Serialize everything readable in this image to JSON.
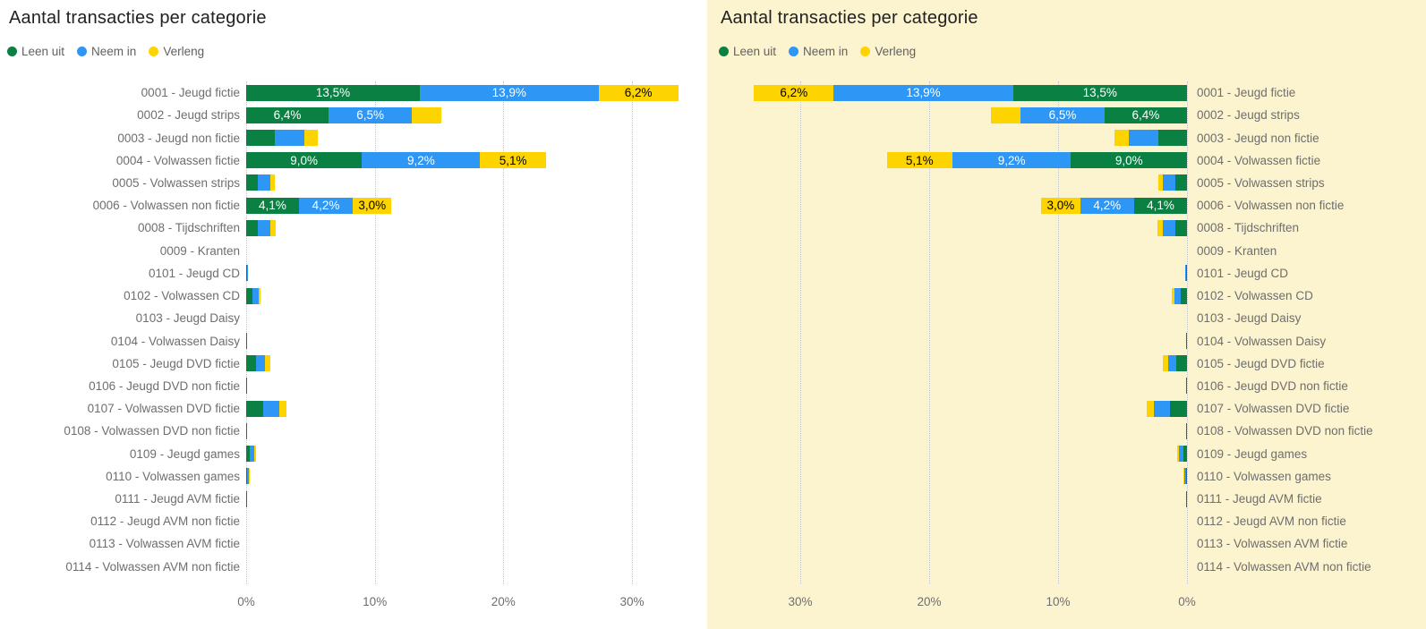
{
  "left_chart": {
    "title": "Aantal transacties per categorie"
  },
  "right_chart": {
    "title": "Aantal transacties per categorie"
  },
  "legend": [
    {
      "label": "Leen uit",
      "color": "#0b8043"
    },
    {
      "label": "Neem in",
      "color": "#2e96f5"
    },
    {
      "label": "Verleng",
      "color": "#fdd400"
    }
  ],
  "colors": {
    "right_panel_background": "#fcf3cf",
    "left_panel_background": "#ffffff",
    "green": "#0b8043",
    "blue": "#2e96f5",
    "yellow": "#fdd400",
    "gridline": "#c6c6c6",
    "label_text": "#6e6e6e",
    "title_text": "#212121"
  },
  "chart_data": {
    "type": "bar",
    "variant": "horizontal-stacked",
    "title": "Aantal transacties per categorie",
    "x_ticks": [
      "0%",
      "10%",
      "20%",
      "30%"
    ],
    "xlim": [
      0,
      35.6
    ],
    "grid": "dotted-vertical",
    "legend_position": "top-left",
    "panels": [
      {
        "side": "left",
        "direction": "bars-grow-right",
        "background": "#ffffff"
      },
      {
        "side": "right",
        "direction": "bars-grow-left (mirrored)",
        "background": "#fcf3cf"
      }
    ],
    "categories": [
      "0001 - Jeugd fictie",
      "0002 - Jeugd strips",
      "0003 - Jeugd non fictie",
      "0004 - Volwassen fictie",
      "0005 - Volwassen strips",
      "0006 - Volwassen non fictie",
      "0008 - Tijdschriften",
      "0009 - Kranten",
      "0101 - Jeugd CD",
      "0102 - Volwassen CD",
      "0103 - Jeugd Daisy",
      "0104 - Volwassen Daisy",
      "0105 - Jeugd DVD fictie",
      "0106 - Jeugd DVD non fictie",
      "0107 - Volwassen DVD fictie",
      "0108 - Volwassen DVD non fictie",
      "0109 - Jeugd games",
      "0110 - Volwassen games",
      "0111 - Jeugd AVM fictie",
      "0112 - Jeugd AVM non fictie",
      "0113 - Volwassen AVM fictie",
      "0114 - Volwassen AVM non fictie"
    ],
    "series": [
      {
        "name": "Leen uit",
        "color": "#0b8043",
        "label_text_color": "#ffffff",
        "values": [
          13.5,
          6.4,
          2.2,
          9.0,
          0.9,
          4.1,
          0.9,
          0,
          0.05,
          0.5,
          0,
          0.06,
          0.8,
          0.05,
          1.3,
          0.06,
          0.3,
          0.1,
          0.04,
          0,
          0,
          0
        ],
        "labels": [
          "13,5%",
          "6,4%",
          null,
          "9,0%",
          null,
          "4,1%",
          null,
          null,
          null,
          null,
          null,
          null,
          null,
          null,
          null,
          null,
          null,
          null,
          null,
          null,
          null,
          null
        ]
      },
      {
        "name": "Neem in",
        "color": "#2e96f5",
        "label_text_color": "#ffffff",
        "values": [
          13.9,
          6.5,
          2.3,
          9.2,
          1.0,
          4.2,
          1.0,
          0,
          0.03,
          0.5,
          0,
          0,
          0.65,
          0,
          1.25,
          0,
          0.35,
          0.08,
          0,
          0,
          0,
          0
        ],
        "labels": [
          "13,9%",
          "6,5%",
          null,
          "9,2%",
          null,
          "4,2%",
          null,
          null,
          null,
          null,
          null,
          null,
          null,
          null,
          null,
          null,
          null,
          null,
          null,
          null,
          null,
          null
        ]
      },
      {
        "name": "Verleng",
        "color": "#fdd400",
        "label_text_color": "#000000",
        "values": [
          6.2,
          2.3,
          1.1,
          5.1,
          0.3,
          3.0,
          0.4,
          0,
          0,
          0.15,
          0,
          0,
          0.45,
          0,
          0.6,
          0,
          0.12,
          0.04,
          0,
          0,
          0,
          0
        ],
        "labels": [
          "6,2%",
          null,
          null,
          "5,1%",
          null,
          "3,0%",
          null,
          null,
          null,
          null,
          null,
          null,
          null,
          null,
          null,
          null,
          null,
          null,
          null,
          null,
          null,
          null
        ]
      }
    ]
  }
}
